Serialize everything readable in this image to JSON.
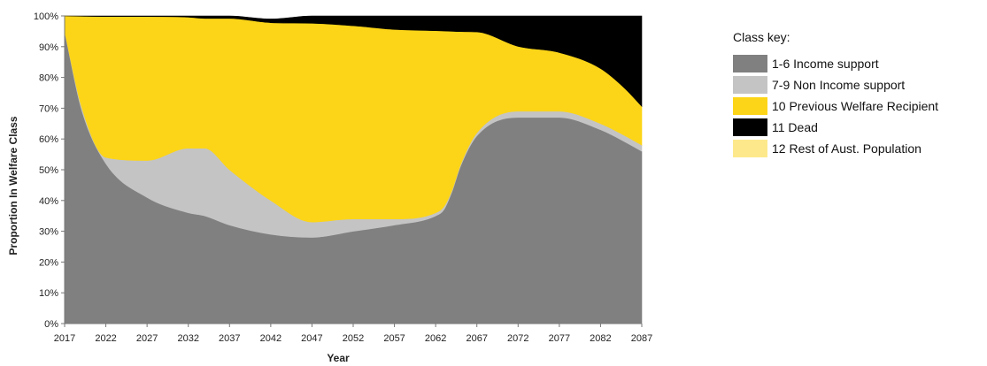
{
  "chart_data": {
    "type": "area",
    "stacked": true,
    "normalized": true,
    "title": "",
    "xlabel": "Year",
    "ylabel": "Proportion In Welfare Class",
    "x": [
      2017,
      2019,
      2022,
      2027,
      2032,
      2034,
      2037,
      2042,
      2047,
      2052,
      2057,
      2062,
      2063,
      2064,
      2065,
      2067,
      2072,
      2077,
      2082,
      2085,
      2087
    ],
    "x_ticks": [
      2017,
      2022,
      2027,
      2032,
      2037,
      2042,
      2047,
      2052,
      2057,
      2062,
      2067,
      2072,
      2077,
      2082,
      2087
    ],
    "y_ticks": [
      "0%",
      "10%",
      "20%",
      "30%",
      "40%",
      "50%",
      "60%",
      "70%",
      "80%",
      "90%",
      "100%"
    ],
    "ylim": [
      0,
      100
    ],
    "series": [
      {
        "name": "1-6 Income support",
        "color": "#808080",
        "values": [
          95,
          70,
          52,
          41,
          36,
          35,
          32,
          29,
          28,
          30,
          32,
          35,
          37,
          43,
          51,
          61,
          67,
          67,
          63,
          59,
          56
        ]
      },
      {
        "name": "7-9 Non Income support",
        "color": "#c4c4c4",
        "values": [
          0,
          1,
          2,
          12,
          21,
          22,
          18,
          11,
          5,
          4,
          2,
          1,
          1,
          0.5,
          0.5,
          1,
          2,
          2,
          2,
          2,
          2
        ]
      },
      {
        "name": "10 Previous Welfare Recipient",
        "color": "#fcd518",
        "values": [
          5,
          28.9,
          45.8,
          46.8,
          42.6,
          42.2,
          49.2,
          57.8,
          64.6,
          62.8,
          61.6,
          59.2,
          57.1,
          51.5,
          43.4,
          32.8,
          21.1,
          19.1,
          17.9,
          15.3,
          12.6
        ]
      },
      {
        "name": "11 Dead",
        "color": "#000000",
        "values": [
          0,
          0.1,
          0.2,
          0.2,
          0.4,
          0.8,
          0.8,
          1.2,
          2.4,
          3.2,
          4.4,
          4.8,
          4.9,
          5,
          5.1,
          5.2,
          9.9,
          11.9,
          17.1,
          23.7,
          29.4
        ]
      },
      {
        "name": "12 Rest of Aust. Population",
        "color": "#fde98c",
        "values": [
          0,
          0,
          0,
          0,
          0,
          0,
          0,
          0,
          0,
          0,
          0,
          0,
          0,
          0,
          0,
          0,
          0,
          0,
          0,
          0,
          0
        ]
      }
    ],
    "legend": {
      "title": "Class key:",
      "position": "right",
      "items": [
        {
          "label": "1-6 Income support",
          "color": "#808080"
        },
        {
          "label": "7-9 Non Income support",
          "color": "#c4c4c4"
        },
        {
          "label": "10 Previous Welfare Recipient",
          "color": "#fcd518"
        },
        {
          "label": "11 Dead",
          "color": "#000000"
        },
        {
          "label": "12 Rest of Aust. Population",
          "color": "#fde98c"
        }
      ]
    },
    "grid": false
  }
}
